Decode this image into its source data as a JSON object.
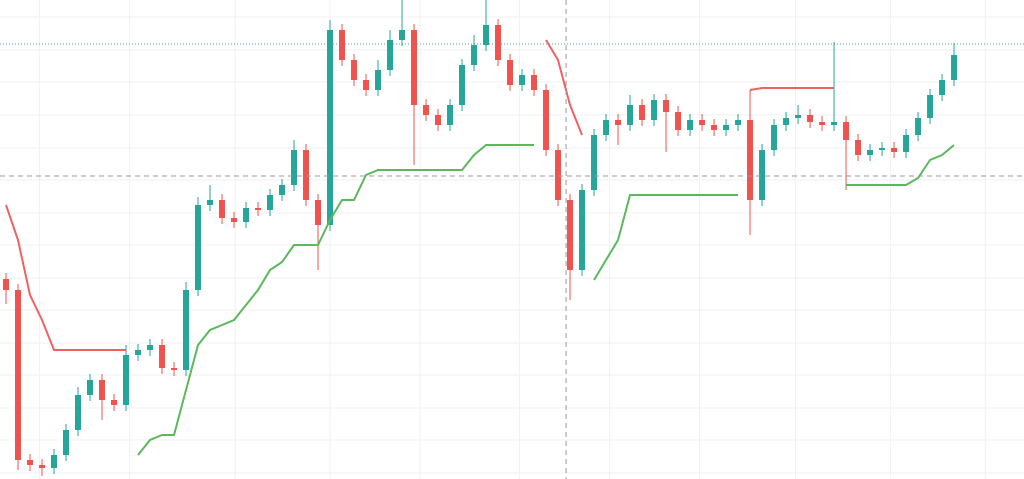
{
  "chart_data": {
    "type": "candlestick",
    "xlim": [
      -0.5,
      84.83
    ],
    "ylim": [
      0,
      479
    ],
    "xgrid": [
      2.8,
      10.3,
      19.1,
      27,
      34.5,
      42.8,
      50.3,
      57.8,
      65.8,
      73.7,
      81.6
    ],
    "ygrid": [
      462,
      429,
      397,
      364,
      331,
      299,
      266,
      234,
      201,
      169,
      136,
      104,
      71,
      39,
      6
    ],
    "grid_color": "#eef1f6",
    "up_color": "#26a69a",
    "down_color": "#ef5350",
    "open": [
      200,
      189,
      19,
      14,
      11,
      24,
      49,
      84,
      99,
      79,
      74,
      124,
      129,
      134,
      111,
      109,
      189,
      274,
      279,
      261,
      257,
      271,
      269,
      284,
      294,
      329,
      279,
      254,
      449,
      419,
      399,
      389,
      409,
      439,
      449,
      374,
      364,
      354,
      374,
      414,
      434,
      454,
      419,
      394,
      404,
      389,
      329,
      279,
      209,
      289,
      344,
      359,
      354,
      374,
      359,
      379,
      367,
      349,
      359,
      354,
      349,
      354,
      359,
      279,
      329,
      354,
      361,
      364,
      357,
      354,
      357,
      339,
      324,
      329,
      331,
      327,
      344,
      361,
      384,
      399
    ],
    "high": [
      206,
      195,
      25,
      20,
      30,
      55,
      92,
      105,
      105,
      85,
      134,
      135,
      140,
      140,
      117,
      197,
      282,
      294,
      285,
      267,
      277,
      277,
      290,
      300,
      339,
      335,
      285,
      459,
      455,
      425,
      405,
      419,
      449,
      479,
      455,
      380,
      370,
      380,
      420,
      444,
      479,
      460,
      425,
      410,
      410,
      395,
      335,
      285,
      295,
      350,
      365,
      365,
      384,
      380,
      385,
      385,
      373,
      365,
      365,
      360,
      360,
      365,
      389,
      335,
      360,
      367,
      374,
      370,
      363,
      437,
      363,
      345,
      335,
      337,
      337,
      350,
      367,
      390,
      405,
      436
    ],
    "low": [
      175,
      9,
      8,
      3,
      5,
      18,
      43,
      78,
      59,
      68,
      68,
      118,
      123,
      105,
      103,
      103,
      183,
      268,
      255,
      251,
      251,
      263,
      263,
      278,
      288,
      273,
      209,
      248,
      413,
      393,
      383,
      383,
      403,
      433,
      314,
      358,
      348,
      348,
      368,
      408,
      428,
      413,
      388,
      388,
      383,
      323,
      273,
      179,
      203,
      283,
      338,
      334,
      348,
      353,
      353,
      327,
      343,
      343,
      348,
      343,
      343,
      348,
      244,
      273,
      323,
      348,
      355,
      351,
      348,
      348,
      289,
      318,
      318,
      323,
      321,
      321,
      338,
      355,
      378,
      393
    ],
    "close": [
      189,
      19,
      14,
      11,
      24,
      49,
      84,
      99,
      79,
      74,
      124,
      129,
      134,
      111,
      109,
      189,
      274,
      279,
      261,
      257,
      271,
      269,
      284,
      294,
      329,
      279,
      254,
      449,
      419,
      399,
      389,
      409,
      439,
      449,
      374,
      364,
      354,
      374,
      414,
      434,
      454,
      419,
      394,
      404,
      389,
      329,
      279,
      209,
      289,
      344,
      359,
      354,
      374,
      359,
      379,
      367,
      349,
      359,
      354,
      349,
      354,
      359,
      279,
      329,
      354,
      361,
      364,
      357,
      354,
      357,
      339,
      324,
      329,
      331,
      327,
      344,
      361,
      384,
      399,
      424
    ],
    "overlays": [
      {
        "color": "#f06262",
        "values": [
          274,
          239,
          184,
          159,
          129,
          129,
          129,
          129,
          129,
          129,
          129,
          null,
          null,
          null,
          null,
          null,
          null,
          null,
          null,
          null,
          null,
          null,
          null,
          null,
          null,
          null,
          null,
          null,
          null,
          null,
          null,
          null,
          null,
          null,
          null,
          null,
          null,
          null,
          null,
          null,
          null,
          null,
          null,
          null,
          null,
          439,
          419,
          374,
          344,
          null,
          null,
          null,
          null,
          null,
          null,
          null,
          null,
          null,
          null,
          null,
          null,
          null,
          389,
          391,
          391,
          391,
          391,
          391,
          391,
          391,
          null,
          null,
          null,
          null,
          null,
          null,
          null,
          null,
          null,
          null
        ]
      },
      {
        "color": "#5cb85c",
        "values": [
          null,
          null,
          null,
          null,
          null,
          null,
          null,
          null,
          null,
          null,
          null,
          24,
          39,
          44,
          44,
          89,
          134,
          149,
          154,
          159,
          174,
          189,
          209,
          217,
          234,
          234,
          234,
          259,
          279,
          279,
          304,
          309,
          309,
          309,
          309,
          309,
          309,
          309,
          309,
          324,
          334,
          334,
          334,
          334,
          334,
          null,
          null,
          null,
          null,
          199,
          219,
          239,
          284,
          284,
          284,
          284,
          284,
          284,
          284,
          284,
          284,
          284,
          null,
          null,
          null,
          null,
          null,
          null,
          null,
          null,
          294,
          294,
          294,
          294,
          294,
          294,
          301,
          319,
          324,
          334
        ]
      }
    ],
    "price_line": {
      "value": 435,
      "color": "#4fa3a0"
    },
    "crosshair": {
      "x": 46.67,
      "y": 303,
      "color": "#9598a1"
    }
  }
}
